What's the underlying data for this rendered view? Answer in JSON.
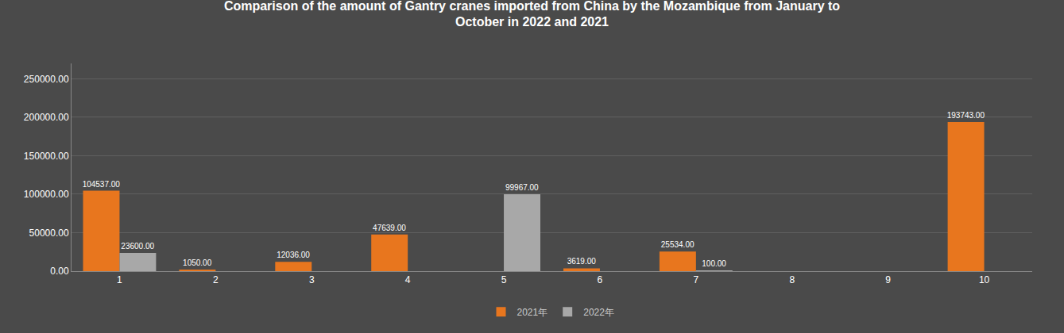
{
  "chart_data": {
    "type": "bar",
    "title": "Comparison of the amount of Gantry cranes imported from China by the Mozambique from January to\nOctober in 2022 and 2021",
    "categories": [
      "1",
      "2",
      "3",
      "4",
      "5",
      "6",
      "7",
      "8",
      "9",
      "10"
    ],
    "series": [
      {
        "name": "2021年",
        "color": "#E8761E",
        "values": [
          104537.0,
          1050.0,
          12036.0,
          47639.0,
          0,
          3619.0,
          25534.0,
          0,
          0,
          193743.0
        ],
        "value_labels": [
          "104537.00",
          "1050.00",
          "12036.00",
          "47639.00",
          null,
          "3619.00",
          "25534.00",
          null,
          null,
          "193743.00"
        ]
      },
      {
        "name": "2022年",
        "color": "#A8A8A8",
        "values": [
          23600.0,
          0,
          0,
          0,
          99967.0,
          0,
          100.0,
          0,
          0,
          0
        ],
        "value_labels": [
          "23600.00",
          null,
          null,
          null,
          "99967.00",
          null,
          "100.00",
          null,
          null,
          null
        ]
      }
    ],
    "ylim": [
      0,
      270000
    ],
    "yticks": [
      {
        "value": 0,
        "label": "0.00"
      },
      {
        "value": 50000,
        "label": "50000.00"
      },
      {
        "value": 100000,
        "label": "100000.00"
      },
      {
        "value": 150000,
        "label": "150000.00"
      },
      {
        "value": 200000,
        "label": "200000.00"
      },
      {
        "value": 250000,
        "label": "250000.00"
      }
    ],
    "grid": true,
    "data_labels": true,
    "legend": "bottom"
  }
}
